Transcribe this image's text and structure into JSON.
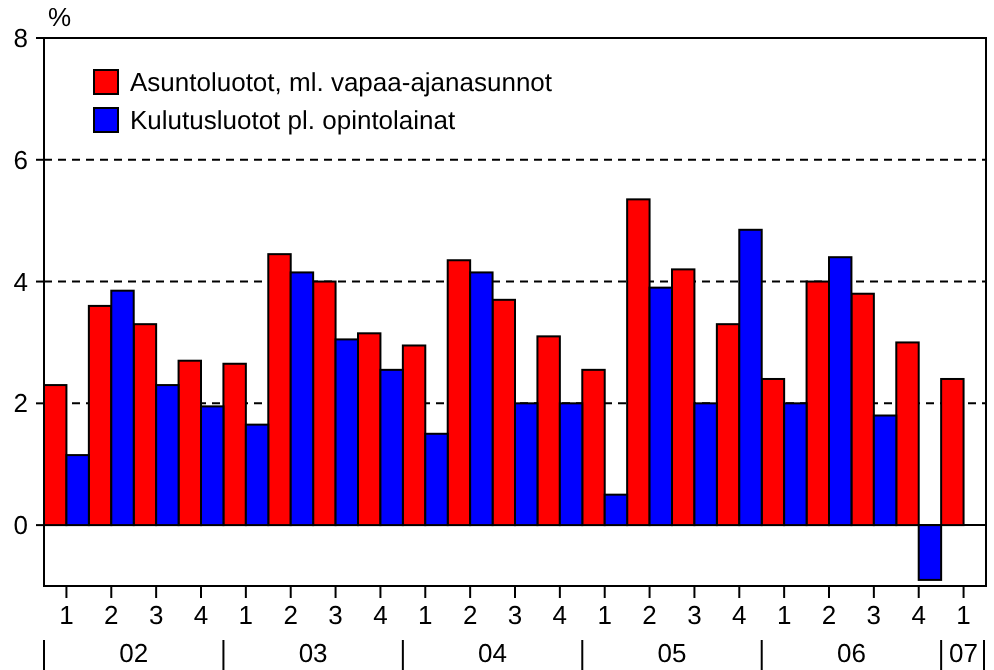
{
  "chart_data": {
    "type": "bar",
    "ylabel": "%",
    "categories": [
      "1",
      "2",
      "3",
      "4",
      "1",
      "2",
      "3",
      "4",
      "1",
      "2",
      "3",
      "4",
      "1",
      "2",
      "3",
      "4",
      "1",
      "2",
      "3",
      "4",
      "1"
    ],
    "series": [
      {
        "name": "Asuntoluotot, ml. vapaa-ajanasunnot",
        "color": "#ff0000",
        "values": [
          2.3,
          3.6,
          3.3,
          2.7,
          2.65,
          4.45,
          4.0,
          3.15,
          2.95,
          4.35,
          3.7,
          3.1,
          2.55,
          5.35,
          4.2,
          3.3,
          2.4,
          4.0,
          3.8,
          3.0,
          2.4
        ]
      },
      {
        "name": "Kulutusluotot pl. opintolainat",
        "color": "#0000ff",
        "values": [
          1.15,
          3.85,
          2.3,
          1.95,
          1.65,
          4.15,
          3.05,
          2.55,
          1.5,
          4.15,
          2.0,
          2.0,
          0.5,
          3.9,
          2.0,
          4.85,
          2.0,
          4.4,
          1.8,
          -0.9,
          null
        ]
      }
    ],
    "ylim": [
      -1,
      8
    ],
    "yticks": [
      0,
      2,
      4,
      6,
      8
    ],
    "grid": "y",
    "legend": "top left",
    "annotations": [
      "02",
      "03",
      "04",
      "05",
      "06",
      "07"
    ]
  }
}
